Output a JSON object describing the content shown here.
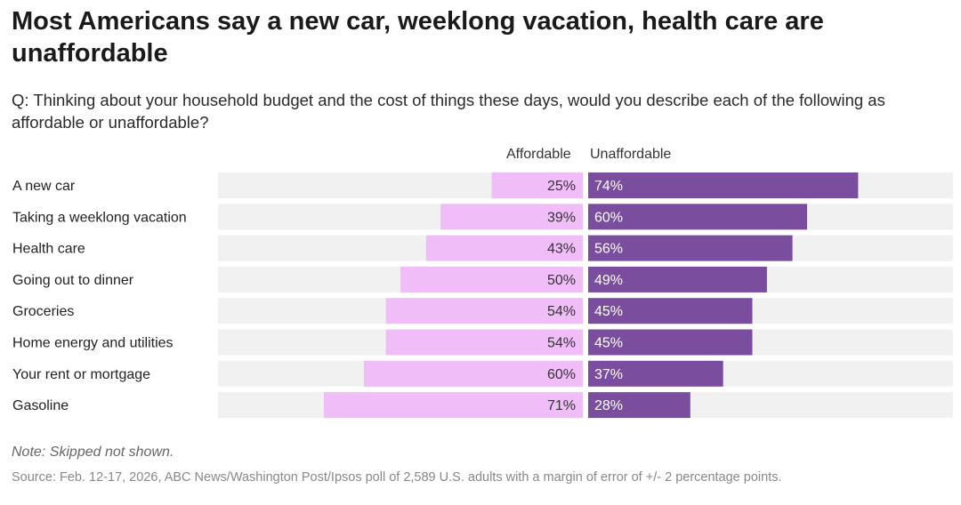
{
  "title": "Most Americans say a new car, weeklong vacation, health care are unaffordable",
  "subtitle": "Q: Thinking about your household budget and the cost of things these days, would you describe each of the following as affordable or unaffordable?",
  "note": "Note: Skipped not shown.",
  "source": "Source: Feb. 12-17, 2026, ABC News/Washington Post/Ipsos poll of 2,589 U.S. adults with a margin of error of +/- 2 percentage points.",
  "colors": {
    "affordable": "#f0bdf9",
    "unaffordable": "#7b4d9f",
    "track": "#f1f1f1"
  },
  "chart_data": {
    "type": "bar",
    "orientation": "horizontal-diverging",
    "categories": [
      "A new car",
      "Taking a weeklong vacation",
      "Health care",
      "Going out to dinner",
      "Groceries",
      "Home energy and utilities",
      "Your rent or mortgage",
      "Gasoline"
    ],
    "series": [
      {
        "name": "Affordable",
        "values": [
          25,
          39,
          43,
          50,
          54,
          54,
          60,
          71
        ]
      },
      {
        "name": "Unaffordable",
        "values": [
          74,
          60,
          56,
          49,
          45,
          45,
          37,
          28
        ]
      }
    ],
    "unit": "%",
    "xlim": [
      0,
      100
    ]
  }
}
